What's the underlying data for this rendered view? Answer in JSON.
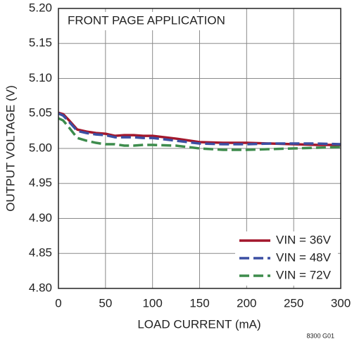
{
  "chart_data": {
    "type": "line",
    "annotation": "FRONT PAGE APPLICATION",
    "figure_id": "8300 G01",
    "x_label": "LOAD CURRENT (mA)",
    "y_label": "OUTPUT VOLTAGE (V)",
    "x": [
      0,
      5,
      10,
      20,
      30,
      40,
      50,
      60,
      70,
      80,
      90,
      100,
      125,
      150,
      175,
      200,
      225,
      250,
      275,
      300
    ],
    "series": [
      {
        "name": "VIN = 36V",
        "color": "#a3172c",
        "dash": "solid",
        "values": [
          5.051,
          5.049,
          5.042,
          5.027,
          5.024,
          5.022,
          5.021,
          5.018,
          5.019,
          5.019,
          5.018,
          5.018,
          5.014,
          5.009,
          5.008,
          5.008,
          5.007,
          5.006,
          5.005,
          5.005
        ]
      },
      {
        "name": "VIN = 48V",
        "color": "#3b4fa3",
        "dash": "dashed",
        "values": [
          5.05,
          5.047,
          5.04,
          5.025,
          5.022,
          5.02,
          5.019,
          5.016,
          5.016,
          5.016,
          5.015,
          5.015,
          5.011,
          5.007,
          5.006,
          5.006,
          5.007,
          5.007,
          5.007,
          5.006
        ]
      },
      {
        "name": "VIN = 72V",
        "color": "#3d8c4c",
        "dash": "dashed",
        "values": [
          5.043,
          5.04,
          5.032,
          5.015,
          5.011,
          5.008,
          5.006,
          5.006,
          5.004,
          5.004,
          5.005,
          5.005,
          5.004,
          5.0,
          4.998,
          4.998,
          4.999,
          5.0,
          5.001,
          5.002
        ]
      }
    ],
    "xlim": [
      0,
      300
    ],
    "xticks": [
      0,
      50,
      100,
      150,
      200,
      250,
      300
    ],
    "ylim": [
      4.8,
      5.2
    ],
    "yticks": [
      {
        "value": 4.8,
        "label": "4.80"
      },
      4.85,
      {
        "value": 4.9,
        "label": "4.90"
      },
      4.95,
      {
        "value": 5,
        "label": "5.00"
      },
      5.05,
      {
        "value": 5.1,
        "label": "5.10"
      },
      5.15,
      {
        "value": 5.2,
        "label": "5.20"
      }
    ],
    "grid": true,
    "legend": "lower right"
  }
}
